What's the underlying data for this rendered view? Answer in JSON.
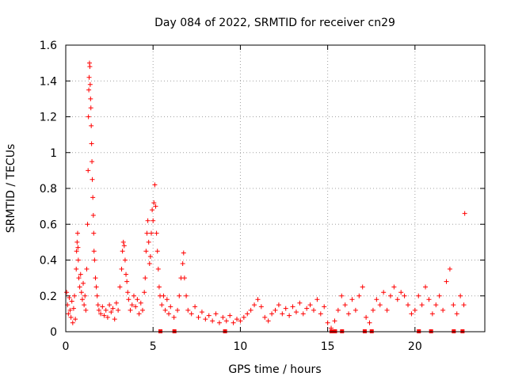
{
  "chart_data": {
    "type": "scatter",
    "title": "Day 084 of 2022, SRMTID for receiver cn29",
    "xlabel": "GPS time / hours",
    "ylabel": "SRMTID / TECUs",
    "xlim": [
      0,
      24
    ],
    "ylim": [
      0,
      1.6
    ],
    "xticks": [
      "0",
      "5",
      "10",
      "15",
      "20"
    ],
    "yticks": [
      "0",
      "0.2",
      "0.4",
      "0.6",
      "0.8",
      "1",
      "1.2",
      "1.4",
      "1.6"
    ],
    "grid": true,
    "marker": "plus",
    "color": "#ff0000",
    "series": [
      {
        "name": "SRMTID",
        "points": [
          [
            0.05,
            0.22
          ],
          [
            0.1,
            0.15
          ],
          [
            0.15,
            0.1
          ],
          [
            0.2,
            0.19
          ],
          [
            0.25,
            0.12
          ],
          [
            0.3,
            0.08
          ],
          [
            0.35,
            0.17
          ],
          [
            0.4,
            0.05
          ],
          [
            0.45,
            0.13
          ],
          [
            0.5,
            0.2
          ],
          [
            0.55,
            0.07
          ],
          [
            0.6,
            0.35
          ],
          [
            0.62,
            0.45
          ],
          [
            0.65,
            0.5
          ],
          [
            0.68,
            0.55
          ],
          [
            0.7,
            0.47
          ],
          [
            0.72,
            0.4
          ],
          [
            0.75,
            0.3
          ],
          [
            0.8,
            0.25
          ],
          [
            0.85,
            0.32
          ],
          [
            0.9,
            0.22
          ],
          [
            0.95,
            0.18
          ],
          [
            1.0,
            0.27
          ],
          [
            1.05,
            0.15
          ],
          [
            1.1,
            0.2
          ],
          [
            1.15,
            0.12
          ],
          [
            1.2,
            0.35
          ],
          [
            1.25,
            0.6
          ],
          [
            1.28,
            0.9
          ],
          [
            1.3,
            1.2
          ],
          [
            1.32,
            1.35
          ],
          [
            1.34,
            1.42
          ],
          [
            1.36,
            1.5
          ],
          [
            1.38,
            1.48
          ],
          [
            1.4,
            1.38
          ],
          [
            1.42,
            1.3
          ],
          [
            1.44,
            1.25
          ],
          [
            1.46,
            1.15
          ],
          [
            1.48,
            1.05
          ],
          [
            1.5,
            0.95
          ],
          [
            1.52,
            0.85
          ],
          [
            1.55,
            0.75
          ],
          [
            1.58,
            0.65
          ],
          [
            1.6,
            0.55
          ],
          [
            1.62,
            0.45
          ],
          [
            1.65,
            0.4
          ],
          [
            1.7,
            0.3
          ],
          [
            1.75,
            0.25
          ],
          [
            1.8,
            0.2
          ],
          [
            1.85,
            0.15
          ],
          [
            1.9,
            0.12
          ],
          [
            2.0,
            0.1
          ],
          [
            2.1,
            0.14
          ],
          [
            2.2,
            0.09
          ],
          [
            2.3,
            0.12
          ],
          [
            2.4,
            0.08
          ],
          [
            2.5,
            0.15
          ],
          [
            2.6,
            0.11
          ],
          [
            2.7,
            0.13
          ],
          [
            2.8,
            0.07
          ],
          [
            2.9,
            0.16
          ],
          [
            3.0,
            0.12
          ],
          [
            3.1,
            0.25
          ],
          [
            3.2,
            0.35
          ],
          [
            3.25,
            0.45
          ],
          [
            3.3,
            0.5
          ],
          [
            3.35,
            0.48
          ],
          [
            3.4,
            0.4
          ],
          [
            3.45,
            0.32
          ],
          [
            3.5,
            0.28
          ],
          [
            3.55,
            0.22
          ],
          [
            3.6,
            0.18
          ],
          [
            3.7,
            0.12
          ],
          [
            3.8,
            0.15
          ],
          [
            3.9,
            0.2
          ],
          [
            4.0,
            0.14
          ],
          [
            4.1,
            0.18
          ],
          [
            4.2,
            0.1
          ],
          [
            4.3,
            0.16
          ],
          [
            4.4,
            0.12
          ],
          [
            4.5,
            0.22
          ],
          [
            4.55,
            0.3
          ],
          [
            4.6,
            0.45
          ],
          [
            4.65,
            0.55
          ],
          [
            4.7,
            0.62
          ],
          [
            4.75,
            0.5
          ],
          [
            4.8,
            0.38
          ],
          [
            4.85,
            0.42
          ],
          [
            4.9,
            0.55
          ],
          [
            4.95,
            0.68
          ],
          [
            5.0,
            0.62
          ],
          [
            5.05,
            0.72
          ],
          [
            5.1,
            0.82
          ],
          [
            5.15,
            0.7
          ],
          [
            5.2,
            0.55
          ],
          [
            5.25,
            0.45
          ],
          [
            5.3,
            0.35
          ],
          [
            5.35,
            0.25
          ],
          [
            5.4,
            0.2
          ],
          [
            5.5,
            0.15
          ],
          [
            5.6,
            0.2
          ],
          [
            5.7,
            0.12
          ],
          [
            5.8,
            0.18
          ],
          [
            5.9,
            0.1
          ],
          [
            6.0,
            0.14
          ],
          [
            6.2,
            0.08
          ],
          [
            6.4,
            0.12
          ],
          [
            6.5,
            0.2
          ],
          [
            6.6,
            0.3
          ],
          [
            6.7,
            0.38
          ],
          [
            6.75,
            0.44
          ],
          [
            6.8,
            0.3
          ],
          [
            6.9,
            0.2
          ],
          [
            7.0,
            0.12
          ],
          [
            7.2,
            0.1
          ],
          [
            7.4,
            0.14
          ],
          [
            7.6,
            0.08
          ],
          [
            7.8,
            0.11
          ],
          [
            8.0,
            0.07
          ],
          [
            8.2,
            0.09
          ],
          [
            8.4,
            0.06
          ],
          [
            8.6,
            0.1
          ],
          [
            8.8,
            0.05
          ],
          [
            9.0,
            0.08
          ],
          [
            9.2,
            0.06
          ],
          [
            9.4,
            0.09
          ],
          [
            9.6,
            0.05
          ],
          [
            9.8,
            0.07
          ],
          [
            10.0,
            0.06
          ],
          [
            10.2,
            0.08
          ],
          [
            10.4,
            0.1
          ],
          [
            10.6,
            0.12
          ],
          [
            10.8,
            0.15
          ],
          [
            11.0,
            0.18
          ],
          [
            11.2,
            0.14
          ],
          [
            11.4,
            0.08
          ],
          [
            11.6,
            0.06
          ],
          [
            11.8,
            0.1
          ],
          [
            12.0,
            0.12
          ],
          [
            12.2,
            0.15
          ],
          [
            12.4,
            0.1
          ],
          [
            12.6,
            0.13
          ],
          [
            12.8,
            0.09
          ],
          [
            13.0,
            0.14
          ],
          [
            13.2,
            0.11
          ],
          [
            13.4,
            0.16
          ],
          [
            13.6,
            0.1
          ],
          [
            13.8,
            0.13
          ],
          [
            14.0,
            0.15
          ],
          [
            14.2,
            0.12
          ],
          [
            14.4,
            0.18
          ],
          [
            14.6,
            0.1
          ],
          [
            14.8,
            0.14
          ],
          [
            15.0,
            0.05
          ],
          [
            15.2,
            0.02
          ],
          [
            15.4,
            0.06
          ],
          [
            15.6,
            0.12
          ],
          [
            15.8,
            0.2
          ],
          [
            16.0,
            0.15
          ],
          [
            16.2,
            0.1
          ],
          [
            16.4,
            0.18
          ],
          [
            16.6,
            0.12
          ],
          [
            16.8,
            0.2
          ],
          [
            17.0,
            0.25
          ],
          [
            17.2,
            0.08
          ],
          [
            17.4,
            0.05
          ],
          [
            17.6,
            0.12
          ],
          [
            17.8,
            0.18
          ],
          [
            18.0,
            0.15
          ],
          [
            18.2,
            0.22
          ],
          [
            18.4,
            0.12
          ],
          [
            18.6,
            0.2
          ],
          [
            18.8,
            0.25
          ],
          [
            19.0,
            0.18
          ],
          [
            19.2,
            0.22
          ],
          [
            19.4,
            0.2
          ],
          [
            19.6,
            0.15
          ],
          [
            19.8,
            0.1
          ],
          [
            20.0,
            0.12
          ],
          [
            20.2,
            0.2
          ],
          [
            20.4,
            0.15
          ],
          [
            20.6,
            0.25
          ],
          [
            20.8,
            0.18
          ],
          [
            21.0,
            0.1
          ],
          [
            21.2,
            0.15
          ],
          [
            21.4,
            0.2
          ],
          [
            21.6,
            0.12
          ],
          [
            21.8,
            0.28
          ],
          [
            22.0,
            0.35
          ],
          [
            22.2,
            0.15
          ],
          [
            22.4,
            0.1
          ],
          [
            22.6,
            0.2
          ],
          [
            22.8,
            0.15
          ],
          [
            22.85,
            0.66
          ]
        ]
      }
    ],
    "zero_markers_x": [
      5.4,
      6.2,
      9.1,
      15.2,
      15.4,
      15.8,
      17.1,
      17.5,
      20.2,
      20.9,
      22.2,
      22.7
    ]
  }
}
